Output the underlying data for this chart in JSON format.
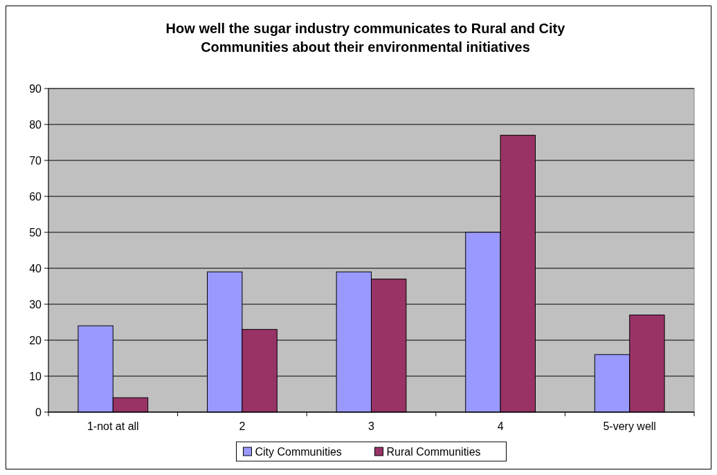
{
  "chart_data": {
    "type": "bar",
    "title": "How well the sugar industry communicates to Rural and City Communities about their environmental initiatives",
    "categories": [
      "1-not at all",
      "2",
      "3",
      "4",
      "5-very well"
    ],
    "series": [
      {
        "name": "City Communities",
        "color": "#9999ff",
        "values": [
          24,
          39,
          39,
          50,
          16
        ]
      },
      {
        "name": "Rural Communities",
        "color": "#993366",
        "values": [
          4,
          23,
          37,
          77,
          27
        ]
      }
    ],
    "ylim": [
      0,
      90
    ],
    "yticks": [
      0,
      10,
      20,
      30,
      40,
      50,
      60,
      70,
      80,
      90
    ],
    "grid": "y",
    "legend": "bottom"
  }
}
